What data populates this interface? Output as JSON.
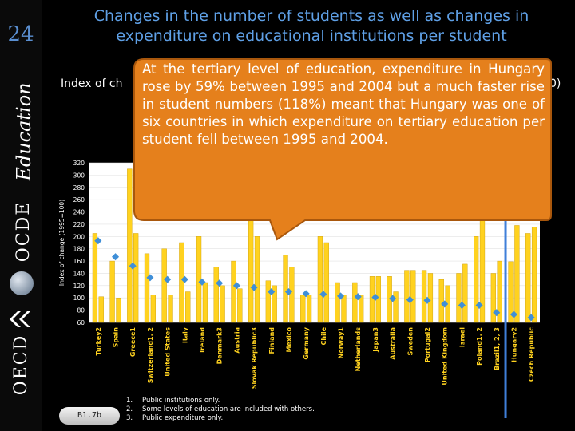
{
  "slide": {
    "number": "24",
    "title": "Changes in the number of students as well as changes in expenditure on educational institutions per student",
    "subtitle": "Index of ch",
    "subtitle_suffix": "0)",
    "sidebar": {
      "education_word": "Education",
      "ocde_word": "OCDE",
      "oecd_word": "OECD"
    },
    "callout": "At the tertiary level of education, expenditure in Hungary rose by 59% between 1995 and 2004 but a much faster rise in student numbers (118%) meant that Hungary was one of six countries in which expenditure on tertiary education per student fell between 1995 and 2004.",
    "box_label": "B1.7b",
    "footnotes": [
      {
        "num": "1.",
        "text": "Public institutions only."
      },
      {
        "num": "2.",
        "text": "Some levels of education are included with others."
      },
      {
        "num": "3.",
        "text": "Public expenditure only."
      }
    ],
    "colors": {
      "bar": "#ffd21f",
      "bar_edge": "#c99800",
      "marker": "#3f8fd8",
      "callout_fill": "#e5801c",
      "callout_edge": "#a9570c",
      "plot_bg": "#ffffff",
      "title": "#5fa0e6",
      "highlight": "#3f7fd9"
    }
  },
  "chart_data": {
    "type": "bar",
    "ylabel": "Index of change (1995=100)",
    "ylim": [
      60,
      320
    ],
    "yticks": [
      60,
      80,
      100,
      120,
      140,
      160,
      180,
      200,
      220,
      240,
      260,
      280,
      300,
      320
    ],
    "categories": [
      "Turkey2",
      "Spain",
      "Greece1",
      "Switzerland1, 2",
      "United States",
      "Italy",
      "Ireland",
      "Denmark3",
      "Austria",
      "Slovak Republic3",
      "Finland",
      "Mexico",
      "Germany",
      "Chile",
      "Norway1",
      "Netherlands",
      "Japan3",
      "Australia",
      "Sweden",
      "Portugal2",
      "United Kingdom",
      "Israel",
      "Poland1, 2",
      "Brazil1, 2, 3",
      "Hungary2",
      "Czech Republic"
    ],
    "highlighted_category": "Hungary2",
    "series": [
      {
        "values": [
          [
            205,
            102
          ],
          [
            160,
            100
          ],
          [
            310,
            205
          ],
          [
            172,
            105
          ],
          [
            180,
            105
          ],
          [
            190,
            110
          ],
          [
            200,
            125
          ],
          [
            150,
            120
          ],
          [
            160,
            115
          ],
          [
            300,
            200
          ],
          [
            128,
            120
          ],
          [
            170,
            150
          ],
          [
            105,
            105
          ],
          [
            200,
            190
          ],
          [
            125,
            105
          ],
          [
            125,
            105
          ],
          [
            135,
            135
          ],
          [
            135,
            110
          ],
          [
            145,
            145
          ],
          [
            145,
            140
          ],
          [
            130,
            120
          ],
          [
            140,
            155
          ],
          [
            200,
            290
          ],
          [
            140,
            160
          ],
          [
            159,
            218
          ],
          [
            205,
            215
          ]
        ]
      }
    ],
    "markers": [
      193,
      167,
      152,
      133,
      130,
      130,
      126,
      124,
      120,
      117,
      110,
      110,
      107,
      106,
      103,
      102,
      101,
      99,
      97,
      96,
      90,
      88,
      88,
      76,
      73,
      68
    ]
  }
}
